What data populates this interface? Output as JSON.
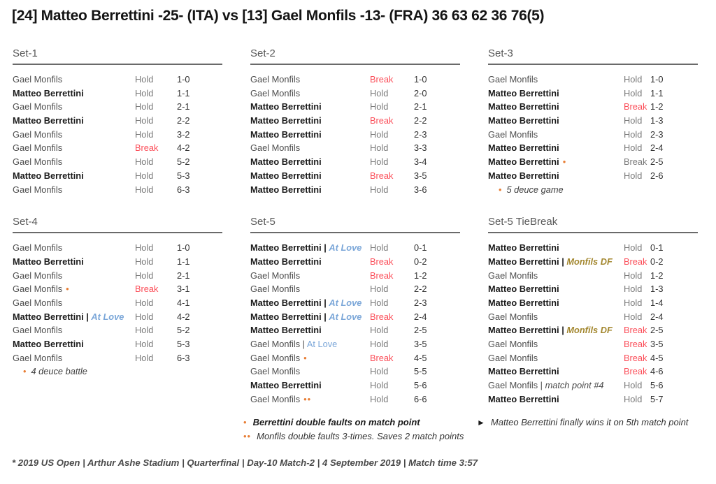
{
  "title": "[24] Matteo Berrettini -25- (ITA) vs [13] Gael Monfils -13- (FRA) 36 63 62 36 76(5)",
  "colors": {
    "break_red": "#fb4e59",
    "deuce_orange": "#e87e35",
    "at_love_blue": "#7aa6d8",
    "double_fault_gold": "#a3872f",
    "muted_gray": "#7a7a7a",
    "name_gray": "#4f4f4f",
    "bold_dark": "#1b1b1b"
  },
  "sections": [
    {
      "id": "set-1",
      "title": "Set-1",
      "col": 1,
      "footnote": null,
      "rows": [
        {
          "player": "Gael Monfils",
          "bold": false,
          "dots": 0,
          "note": null,
          "result": "Hold",
          "result_style": "muted",
          "score": "1-0"
        },
        {
          "player": "Matteo Berrettini",
          "bold": true,
          "dots": 0,
          "note": null,
          "result": "Hold",
          "result_style": "muted",
          "score": "1-1"
        },
        {
          "player": "Gael Monfils",
          "bold": false,
          "dots": 0,
          "note": null,
          "result": "Hold",
          "result_style": "muted",
          "score": "2-1"
        },
        {
          "player": "Matteo Berrettini",
          "bold": true,
          "dots": 0,
          "note": null,
          "result": "Hold",
          "result_style": "muted",
          "score": "2-2"
        },
        {
          "player": "Gael Monfils",
          "bold": false,
          "dots": 0,
          "note": null,
          "result": "Hold",
          "result_style": "muted",
          "score": "3-2"
        },
        {
          "player": "Gael Monfils",
          "bold": false,
          "dots": 0,
          "note": null,
          "result": "Break",
          "result_style": "red",
          "score": "4-2"
        },
        {
          "player": "Gael Monfils",
          "bold": false,
          "dots": 0,
          "note": null,
          "result": "Hold",
          "result_style": "muted",
          "score": "5-2"
        },
        {
          "player": "Matteo Berrettini",
          "bold": true,
          "dots": 0,
          "note": null,
          "result": "Hold",
          "result_style": "muted",
          "score": "5-3"
        },
        {
          "player": "Gael Monfils",
          "bold": false,
          "dots": 0,
          "note": null,
          "result": "Hold",
          "result_style": "muted",
          "score": "6-3"
        }
      ]
    },
    {
      "id": "set-2",
      "title": "Set-2",
      "col": 2,
      "footnote": null,
      "rows": [
        {
          "player": "Gael Monfils",
          "bold": false,
          "dots": 0,
          "note": null,
          "result": "Break",
          "result_style": "red",
          "score": "1-0"
        },
        {
          "player": "Gael Monfils",
          "bold": false,
          "dots": 0,
          "note": null,
          "result": "Hold",
          "result_style": "muted",
          "score": "2-0"
        },
        {
          "player": "Matteo Berrettini",
          "bold": true,
          "dots": 0,
          "note": null,
          "result": "Hold",
          "result_style": "muted",
          "score": "2-1"
        },
        {
          "player": "Matteo Berrettini",
          "bold": true,
          "dots": 0,
          "note": null,
          "result": "Break",
          "result_style": "red",
          "score": "2-2"
        },
        {
          "player": "Matteo Berrettini",
          "bold": true,
          "dots": 0,
          "note": null,
          "result": "Hold",
          "result_style": "muted",
          "score": "2-3"
        },
        {
          "player": "Gael Monfils",
          "bold": false,
          "dots": 0,
          "note": null,
          "result": "Hold",
          "result_style": "muted",
          "score": "3-3"
        },
        {
          "player": "Matteo Berrettini",
          "bold": true,
          "dots": 0,
          "note": null,
          "result": "Hold",
          "result_style": "muted",
          "score": "3-4"
        },
        {
          "player": "Matteo Berrettini",
          "bold": true,
          "dots": 0,
          "note": null,
          "result": "Break",
          "result_style": "red",
          "score": "3-5"
        },
        {
          "player": "Matteo Berrettini",
          "bold": true,
          "dots": 0,
          "note": null,
          "result": "Hold",
          "result_style": "muted",
          "score": "3-6"
        }
      ]
    },
    {
      "id": "set-3",
      "title": "Set-3",
      "col": 3,
      "footnote": {
        "bullet": "•",
        "text": "5 deuce game"
      },
      "rows": [
        {
          "player": "Gael Monfils",
          "bold": false,
          "dots": 0,
          "note": null,
          "result": "Hold",
          "result_style": "muted",
          "score": "1-0"
        },
        {
          "player": "Matteo Berrettini",
          "bold": true,
          "dots": 0,
          "note": null,
          "result": "Hold",
          "result_style": "muted",
          "score": "1-1"
        },
        {
          "player": "Matteo Berrettini",
          "bold": true,
          "dots": 0,
          "note": null,
          "result": "Break",
          "result_style": "red",
          "score": "1-2"
        },
        {
          "player": "Matteo Berrettini",
          "bold": true,
          "dots": 0,
          "note": null,
          "result": "Hold",
          "result_style": "muted",
          "score": "1-3"
        },
        {
          "player": "Gael Monfils",
          "bold": false,
          "dots": 0,
          "note": null,
          "result": "Hold",
          "result_style": "muted",
          "score": "2-3"
        },
        {
          "player": "Matteo Berrettini",
          "bold": true,
          "dots": 0,
          "note": null,
          "result": "Hold",
          "result_style": "muted",
          "score": "2-4"
        },
        {
          "player": "Matteo Berrettini",
          "bold": true,
          "dots": 1,
          "note": null,
          "result": "Break",
          "result_style": "muted",
          "score": "2-5"
        },
        {
          "player": "Matteo Berrettini",
          "bold": true,
          "dots": 0,
          "note": null,
          "result": "Hold",
          "result_style": "muted",
          "score": "2-6"
        }
      ]
    },
    {
      "id": "set-4",
      "title": "Set-4",
      "col": 1,
      "footnote": {
        "bullet": "•",
        "text": "4 deuce battle"
      },
      "rows": [
        {
          "player": "Gael Monfils",
          "bold": false,
          "dots": 0,
          "note": null,
          "result": "Hold",
          "result_style": "muted",
          "score": "1-0"
        },
        {
          "player": "Matteo Berrettini",
          "bold": true,
          "dots": 0,
          "note": null,
          "result": "Hold",
          "result_style": "muted",
          "score": "1-1"
        },
        {
          "player": "Gael Monfils",
          "bold": false,
          "dots": 0,
          "note": null,
          "result": "Hold",
          "result_style": "muted",
          "score": "2-1"
        },
        {
          "player": "Gael Monfils",
          "bold": false,
          "dots": 1,
          "note": null,
          "result": "Break",
          "result_style": "red",
          "score": "3-1"
        },
        {
          "player": "Gael Monfils",
          "bold": false,
          "dots": 0,
          "note": null,
          "result": "Hold",
          "result_style": "muted",
          "score": "4-1"
        },
        {
          "player": "Matteo Berrettini",
          "bold": true,
          "dots": 0,
          "note": {
            "text": "At Love",
            "style": "at-love-italic"
          },
          "result": "Hold",
          "result_style": "muted",
          "score": "4-2"
        },
        {
          "player": "Gael Monfils",
          "bold": false,
          "dots": 0,
          "note": null,
          "result": "Hold",
          "result_style": "muted",
          "score": "5-2"
        },
        {
          "player": "Matteo Berrettini",
          "bold": true,
          "dots": 0,
          "note": null,
          "result": "Hold",
          "result_style": "muted",
          "score": "5-3"
        },
        {
          "player": "Gael Monfils",
          "bold": false,
          "dots": 0,
          "note": null,
          "result": "Hold",
          "result_style": "muted",
          "score": "6-3"
        }
      ]
    },
    {
      "id": "set-5",
      "title": "Set-5",
      "col": 2,
      "footnote": null,
      "rows": [
        {
          "player": "Matteo Berrettini",
          "bold": true,
          "dots": 0,
          "note": {
            "text": "At Love",
            "style": "at-love-italic"
          },
          "result": "Hold",
          "result_style": "muted",
          "score": "0-1"
        },
        {
          "player": "Matteo Berrettini",
          "bold": true,
          "dots": 0,
          "note": null,
          "result": "Break",
          "result_style": "red",
          "score": "0-2"
        },
        {
          "player": "Gael Monfils",
          "bold": false,
          "dots": 0,
          "note": null,
          "result": "Break",
          "result_style": "red",
          "score": "1-2"
        },
        {
          "player": "Gael Monfils",
          "bold": false,
          "dots": 0,
          "note": null,
          "result": "Hold",
          "result_style": "muted",
          "score": "2-2"
        },
        {
          "player": "Matteo Berrettini",
          "bold": true,
          "dots": 0,
          "note": {
            "text": "At Love",
            "style": "at-love-italic"
          },
          "result": "Hold",
          "result_style": "muted",
          "score": "2-3"
        },
        {
          "player": "Matteo Berrettini",
          "bold": true,
          "dots": 0,
          "note": {
            "text": "At Love",
            "style": "at-love-italic"
          },
          "result": "Break",
          "result_style": "red",
          "score": "2-4"
        },
        {
          "player": "Matteo Berrettini",
          "bold": true,
          "dots": 0,
          "note": null,
          "result": "Hold",
          "result_style": "muted",
          "score": "2-5"
        },
        {
          "player": "Gael Monfils",
          "bold": false,
          "dots": 0,
          "note": {
            "text": "At Love",
            "style": "at-love"
          },
          "result": "Hold",
          "result_style": "muted",
          "score": "3-5"
        },
        {
          "player": "Gael Monfils",
          "bold": false,
          "dots": 1,
          "note": null,
          "result": "Break",
          "result_style": "red",
          "score": "4-5"
        },
        {
          "player": "Gael Monfils",
          "bold": false,
          "dots": 0,
          "note": null,
          "result": "Hold",
          "result_style": "muted",
          "score": "5-5"
        },
        {
          "player": "Matteo Berrettini",
          "bold": true,
          "dots": 0,
          "note": null,
          "result": "Hold",
          "result_style": "muted",
          "score": "5-6"
        },
        {
          "player": "Gael Monfils",
          "bold": false,
          "dots": 2,
          "note": null,
          "result": "Hold",
          "result_style": "muted",
          "score": "6-6"
        }
      ]
    },
    {
      "id": "set-5-tiebreak",
      "title": "Set-5 TieBreak",
      "col": 3,
      "footnote": null,
      "rows": [
        {
          "player": "Matteo Berrettini",
          "bold": true,
          "dots": 0,
          "note": null,
          "result": "Hold",
          "result_style": "muted",
          "score": "0-1"
        },
        {
          "player": "Matteo Berrettini",
          "bold": true,
          "dots": 0,
          "note": {
            "text": "Monfils DF",
            "style": "double-fault"
          },
          "result": "Break",
          "result_style": "red",
          "score": "0-2"
        },
        {
          "player": "Gael Monfils",
          "bold": false,
          "dots": 0,
          "note": null,
          "result": "Hold",
          "result_style": "muted",
          "score": "1-2"
        },
        {
          "player": "Matteo Berrettini",
          "bold": true,
          "dots": 0,
          "note": null,
          "result": "Hold",
          "result_style": "muted",
          "score": "1-3"
        },
        {
          "player": "Matteo Berrettini",
          "bold": true,
          "dots": 0,
          "note": null,
          "result": "Hold",
          "result_style": "muted",
          "score": "1-4"
        },
        {
          "player": "Gael Monfils",
          "bold": false,
          "dots": 0,
          "note": null,
          "result": "Hold",
          "result_style": "muted",
          "score": "2-4"
        },
        {
          "player": "Matteo Berrettini",
          "bold": true,
          "dots": 0,
          "note": {
            "text": "Monfils DF",
            "style": "double-fault"
          },
          "result": "Break",
          "result_style": "red",
          "score": "2-5"
        },
        {
          "player": "Gael Monfils",
          "bold": false,
          "dots": 0,
          "note": null,
          "result": "Break",
          "result_style": "red",
          "score": "3-5"
        },
        {
          "player": "Gael Monfils",
          "bold": false,
          "dots": 0,
          "note": null,
          "result": "Break",
          "result_style": "red",
          "score": "4-5"
        },
        {
          "player": "Matteo Berrettini",
          "bold": true,
          "dots": 0,
          "note": null,
          "result": "Break",
          "result_style": "red",
          "score": "4-6"
        },
        {
          "player": "Gael Monfils",
          "bold": false,
          "dots": 0,
          "note": {
            "text": "match point #4",
            "style": "match-point"
          },
          "result": "Hold",
          "result_style": "muted",
          "score": "5-6"
        },
        {
          "player": "Matteo Berrettini",
          "bold": true,
          "dots": 0,
          "note": null,
          "result": "Hold",
          "result_style": "muted",
          "score": "5-7"
        }
      ]
    }
  ],
  "bottom_notes": {
    "left": [
      {
        "bullets": "•",
        "text": "Berrettini double faults on match point",
        "emphasis": true
      },
      {
        "bullets": "••",
        "text": "Monfils double faults 3-times. Saves 2 match points",
        "emphasis": false
      }
    ],
    "right_marker": "►",
    "right_text": "Matteo Berrettini finally wins it on 5th match point"
  },
  "footer": "* 2019 US Open | Arthur Ashe Stadium | Quarterfinal | Day-10 Match-2 | 4 September 2019 | Match time 3:57"
}
